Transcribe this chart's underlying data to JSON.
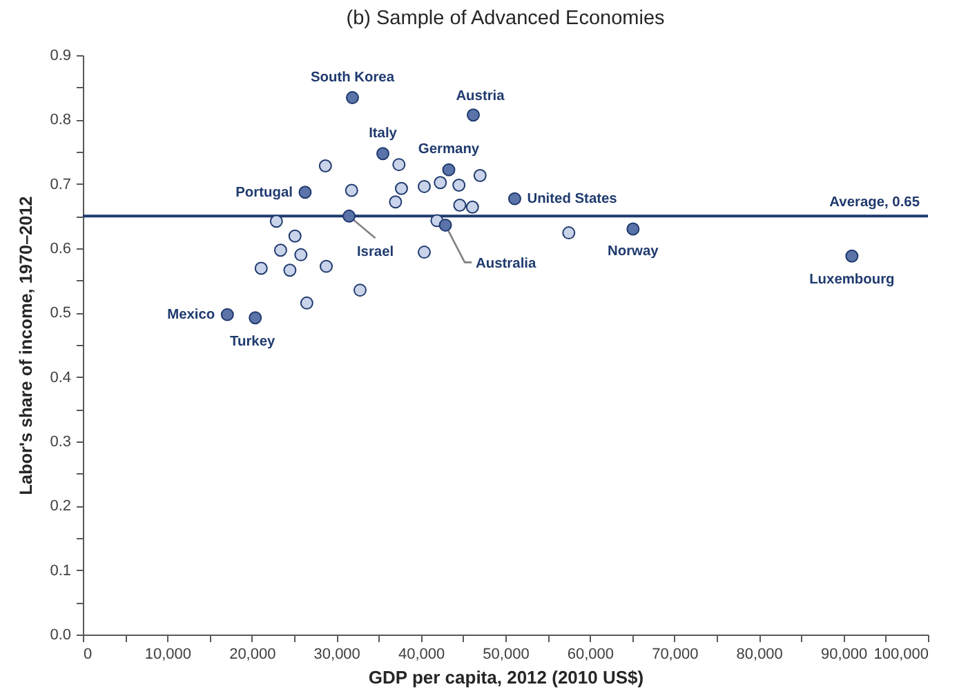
{
  "chart_data": {
    "type": "scatter",
    "title": "(b) Sample of Advanced Economies",
    "xlabel": "GDP per capita, 2012 (2010 US$)",
    "ylabel": "Labor's share of income, 1970–2012",
    "xlim": [
      0,
      100000
    ],
    "xticks": [
      0,
      {
        "value": 5000,
        "label": null
      },
      {
        "value": 10000,
        "label": "10,000"
      },
      {
        "value": 15000,
        "label": null
      },
      {
        "value": 20000,
        "label": "20,000"
      },
      {
        "value": 25000,
        "label": null
      },
      {
        "value": 30000,
        "label": "30,000"
      },
      {
        "value": 35000,
        "label": null
      },
      {
        "value": 40000,
        "label": "40,000"
      },
      {
        "value": 45000,
        "label": null
      },
      {
        "value": 50000,
        "label": "50,000"
      },
      {
        "value": 55000,
        "label": null
      },
      {
        "value": 60000,
        "label": "60,000"
      },
      {
        "value": 65000,
        "label": null
      },
      {
        "value": 70000,
        "label": "70,000"
      },
      {
        "value": 75000,
        "label": null
      },
      {
        "value": 80000,
        "label": "80,000"
      },
      {
        "value": 85000,
        "label": null
      },
      {
        "value": 90000,
        "label": "90,000"
      },
      {
        "value": 95000,
        "label": null
      },
      {
        "value": 100000,
        "label": "100,000"
      }
    ],
    "ylim": [
      0,
      0.9
    ],
    "yticks": [
      {
        "value": 0,
        "label": "0.0"
      },
      {
        "value": 0.05,
        "label": null
      },
      0.1,
      {
        "value": 0.15,
        "label": null
      },
      0.2,
      {
        "value": 0.25,
        "label": null
      },
      0.3,
      {
        "value": 0.35,
        "label": null
      },
      0.4,
      {
        "value": 0.45,
        "label": null
      },
      0.5,
      {
        "value": 0.55,
        "label": null
      },
      0.6,
      {
        "value": 0.65,
        "label": null
      },
      0.7,
      {
        "value": 0.75,
        "label": null
      },
      0.8,
      {
        "value": 0.85,
        "label": null
      },
      0.9
    ],
    "grid": false,
    "marker": "circle",
    "series": [
      {
        "color": "#c9d3ea",
        "x": [
          28700,
          37400,
          47000,
          40400,
          42300,
          44500,
          37700,
          31800,
          37000,
          44600,
          46100,
          22900,
          41900,
          25100,
          23400,
          25800,
          40400,
          21100,
          24500,
          28800,
          32800,
          26500,
          57500
        ],
        "values": [
          0.728,
          0.73,
          0.713,
          0.696,
          0.702,
          0.698,
          0.693,
          0.69,
          0.672,
          0.667,
          0.664,
          0.642,
          0.643,
          0.619,
          0.597,
          0.59,
          0.594,
          0.569,
          0.566,
          0.572,
          0.535,
          0.515,
          0.624
        ]
      },
      {
        "color": "#5a73a8",
        "x": [
          31900,
          46200,
          35500,
          43300,
          26300,
          51100,
          31500,
          42900,
          65100,
          91000,
          17100,
          20400
        ],
        "values": [
          0.834,
          0.807,
          0.747,
          0.722,
          0.687,
          0.677,
          0.65,
          0.636,
          0.63,
          0.588,
          0.497,
          0.492
        ]
      }
    ],
    "ref_lines": [
      {
        "axis": "y",
        "value": 0.65,
        "label": "Average, 0.65",
        "color": "#1f3a6e",
        "line_style": "solid"
      }
    ],
    "annotations": [
      {
        "text": "South Korea",
        "x": 31900,
        "y": 0.834
      },
      {
        "text": "Austria",
        "x": 46200,
        "y": 0.807
      },
      {
        "text": "Italy",
        "x": 35500,
        "y": 0.747
      },
      {
        "text": "Germany",
        "x": 43300,
        "y": 0.722
      },
      {
        "text": "Portugal",
        "x": 26300,
        "y": 0.687
      },
      {
        "text": "United States",
        "x": 51100,
        "y": 0.677
      },
      {
        "text": "Israel",
        "x": 31500,
        "y": 0.65
      },
      {
        "text": "Australia",
        "x": 42900,
        "y": 0.636
      },
      {
        "text": "Norway",
        "x": 65100,
        "y": 0.63
      },
      {
        "text": "Luxembourg",
        "x": 91000,
        "y": 0.588
      },
      {
        "text": "Mexico",
        "x": 17100,
        "y": 0.497
      },
      {
        "text": "Turkey",
        "x": 20400,
        "y": 0.492
      }
    ]
  }
}
